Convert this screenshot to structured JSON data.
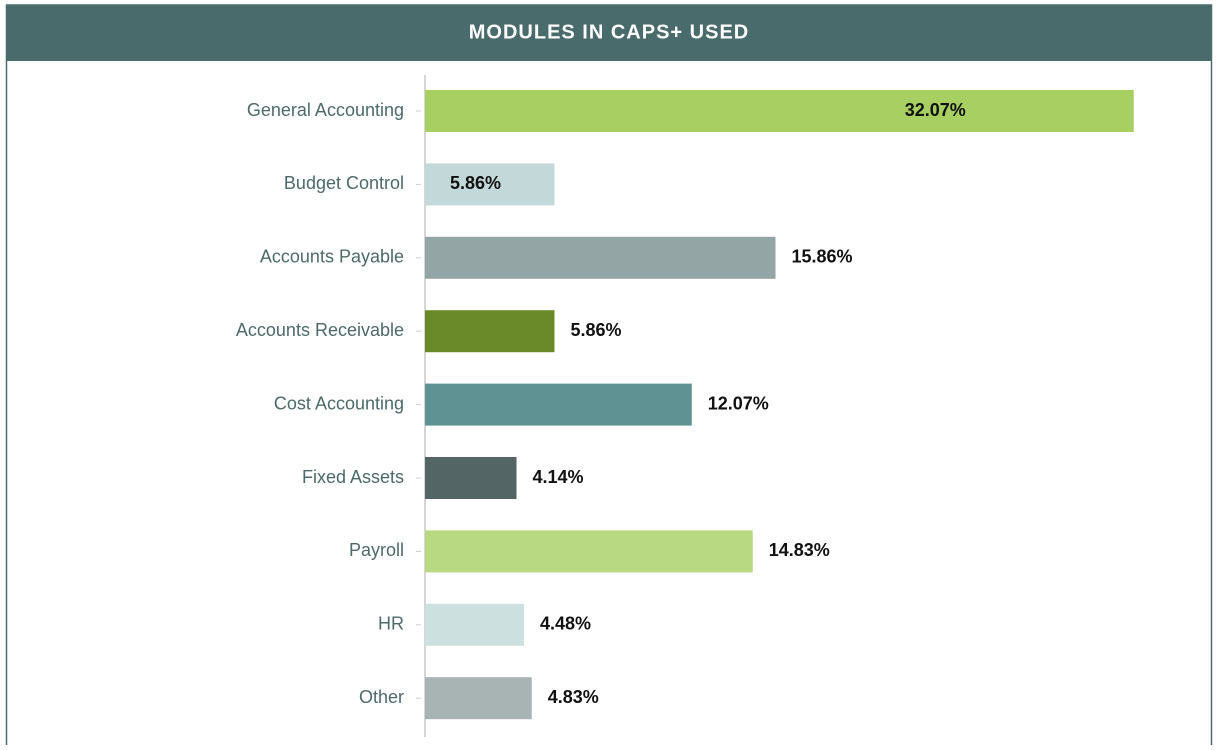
{
  "chart_data": {
    "type": "bar",
    "orientation": "horizontal",
    "title": "MODULES IN CAPS+ USED",
    "categories": [
      "General Accounting",
      "Budget Control",
      "Accounts Payable",
      "Accounts Receivable",
      "Cost Accounting",
      "Fixed Assets",
      "Payroll",
      "HR",
      "Other"
    ],
    "values": [
      32.07,
      5.86,
      15.86,
      5.86,
      12.07,
      4.14,
      14.83,
      4.48,
      4.83
    ],
    "value_labels": [
      "32.07%",
      "5.86%",
      "15.86%",
      "5.86%",
      "12.07%",
      "4.14%",
      "14.83%",
      "4.48%",
      "4.83%"
    ],
    "colors": [
      "#a7cf62",
      "#c3d8d9",
      "#93a5a5",
      "#6a8a2a",
      "#5f9393",
      "#536565",
      "#b8d982",
      "#cde0e0",
      "#a8b4b4"
    ],
    "xlim": [
      0,
      35
    ]
  }
}
